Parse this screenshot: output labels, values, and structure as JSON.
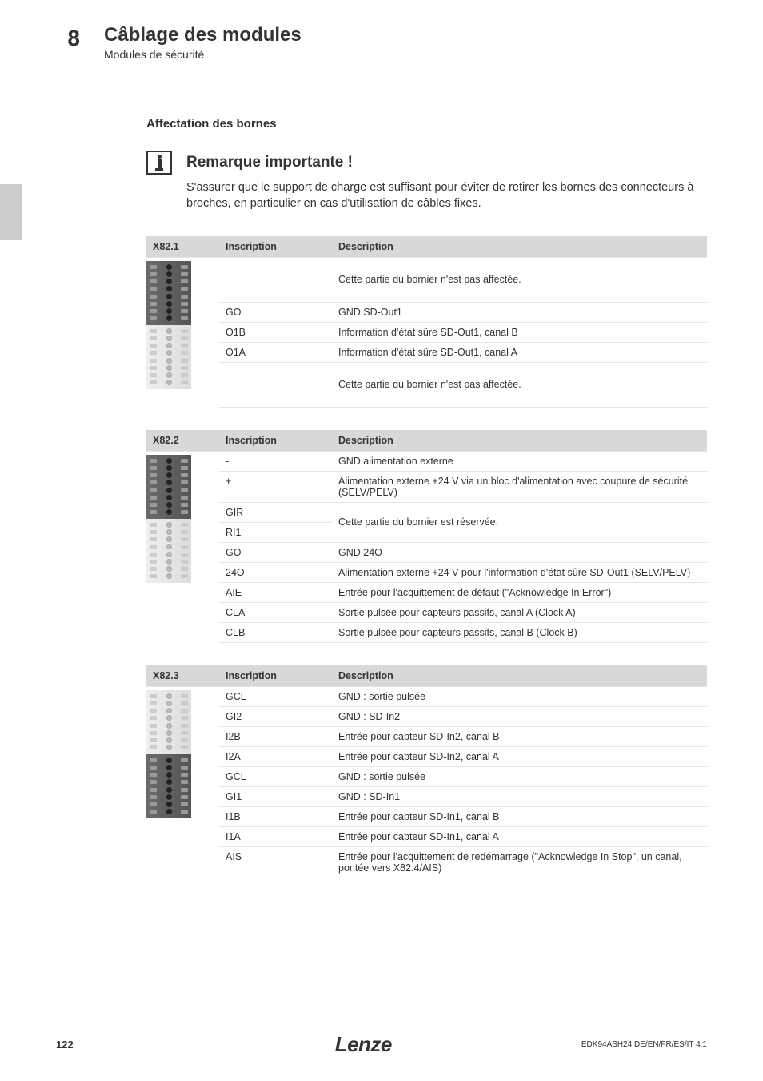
{
  "header": {
    "section_number": "8",
    "chapter_title": "Câblage des modules",
    "chapter_sub": "Modules de sécurité"
  },
  "content": {
    "section_heading": "Affectation des bornes",
    "note_title": "Remarque importante !",
    "note_text": "S'assurer que le support de charge est suffisant pour éviter de retirer les bornes des connecteurs à broches, en particulier en cas d'utilisation de câbles fixes."
  },
  "table_headers": {
    "inscription": "Inscription",
    "description": "Description"
  },
  "table1": {
    "label": "X82.1",
    "rows": [
      {
        "insc": "",
        "desc": "Cette partie du bornier n'est pas affectée.",
        "tall": true
      },
      {
        "insc": "GO",
        "desc": "GND SD-Out1"
      },
      {
        "insc": "O1B",
        "desc": "Information d'état sûre SD-Out1, canal B"
      },
      {
        "insc": "O1A",
        "desc": "Information d'état sûre SD-Out1, canal A"
      },
      {
        "insc": "",
        "desc": "Cette partie du bornier n'est pas affectée.",
        "tall": true
      }
    ]
  },
  "table2": {
    "label": "X82.2",
    "rows": [
      {
        "insc": "-",
        "desc": "GND alimentation externe"
      },
      {
        "insc": "+",
        "desc": "Alimentation externe +24 V via un bloc d'alimentation avec coupure de sécurité (SELV/PELV)"
      },
      {
        "insc": "GIR",
        "desc": "Cette partie du bornier est réservée.",
        "merge_next": true
      },
      {
        "insc": "RI1",
        "desc": ""
      },
      {
        "insc": "GO",
        "desc": "GND 24O"
      },
      {
        "insc": "24O",
        "desc": "Alimentation externe +24 V pour l'information d'état sûre SD-Out1 (SELV/PELV)"
      },
      {
        "insc": "AIE",
        "desc": "Entrée pour l'acquittement de défaut (\"Acknowledge In Error\")"
      },
      {
        "insc": "CLA",
        "desc": "Sortie pulsée pour capteurs passifs, canal A (Clock A)"
      },
      {
        "insc": "CLB",
        "desc": "Sortie pulsée pour capteurs passifs, canal B (Clock B)"
      }
    ]
  },
  "table3": {
    "label": "X82.3",
    "rows": [
      {
        "insc": "GCL",
        "desc": "GND : sortie pulsée"
      },
      {
        "insc": "GI2",
        "desc": "GND : SD-In2"
      },
      {
        "insc": "I2B",
        "desc": "Entrée pour capteur SD-In2, canal B"
      },
      {
        "insc": "I2A",
        "desc": "Entrée pour capteur SD-In2, canal A"
      },
      {
        "insc": "GCL",
        "desc": "GND : sortie pulsée"
      },
      {
        "insc": "GI1",
        "desc": "GND : SD-In1"
      },
      {
        "insc": "I1B",
        "desc": "Entrée pour capteur SD-In1, canal B"
      },
      {
        "insc": "I1A",
        "desc": "Entrée pour capteur SD-In1, canal A"
      },
      {
        "insc": "AIS",
        "desc": "Entrée pour l'acquittement de redémarrage (\"Acknowledge In Stop\", un canal, pontée vers X82.4/AIS)"
      }
    ]
  },
  "footer": {
    "page_num": "122",
    "footer_right": "EDK94ASH24  DE/EN/FR/ES/IT  4.1"
  },
  "connectors": {
    "t1_dark_first": true,
    "t2_dark_first": true,
    "t3_dark_first": false
  },
  "colors": {
    "bg": "#ffffff",
    "text": "#333333",
    "header_bg": "#d8d8d8",
    "border": "#e5e5e5",
    "tab_gray": "#cccccc"
  }
}
